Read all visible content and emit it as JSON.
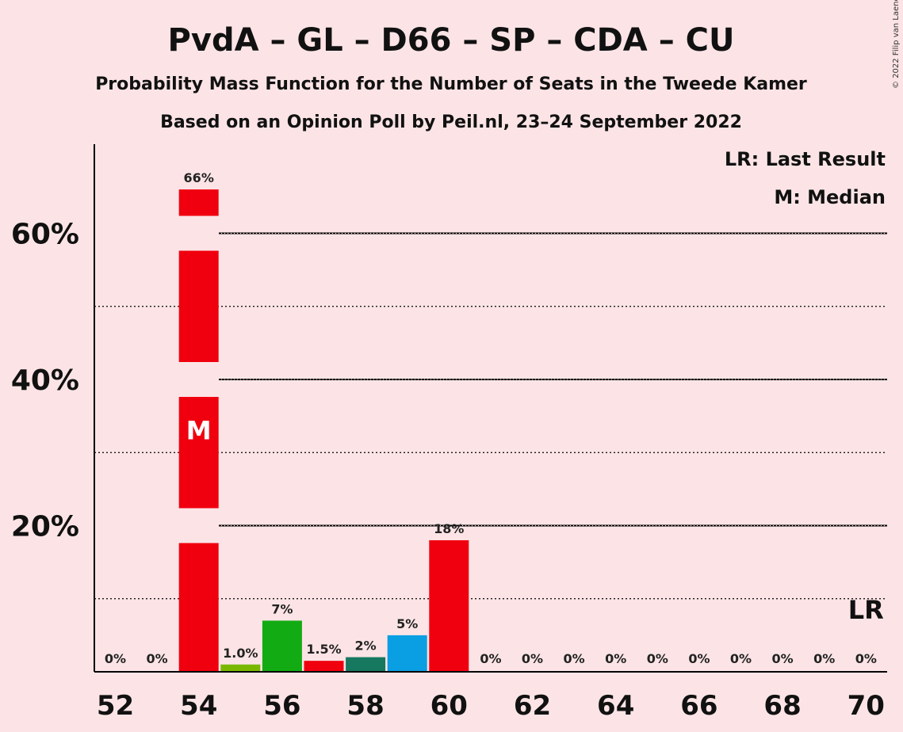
{
  "title": "PvdA – GL – D66 – SP – CDA – CU",
  "subtitle1": "Probability Mass Function for the Number of Seats in the Tweede Kamer",
  "subtitle2": "Based on an Opinion Poll by Peil.nl, 23–24 September 2022",
  "copyright": "© 2022 Filip van Laenen",
  "legend": {
    "lr": "LR: Last Result",
    "m": "M: Median"
  },
  "markers": {
    "median_label": "M",
    "median_seats": 54,
    "last_result_label": "LR",
    "last_result_seats": 70
  },
  "colors": {
    "background": "#fce4e6",
    "red": "#f0000f",
    "lightgreen": "#7ab800",
    "green": "#13ab13",
    "teal": "#16785e",
    "blue": "#0a9ee3"
  },
  "chart_data": {
    "type": "bar",
    "x": [
      52,
      53,
      54,
      55,
      56,
      57,
      58,
      59,
      60,
      61,
      62,
      63,
      64,
      65,
      66,
      67,
      68,
      69,
      70
    ],
    "values": [
      0,
      0,
      66,
      1.0,
      7,
      1.5,
      2,
      5,
      18,
      0,
      0,
      0,
      0,
      0,
      0,
      0,
      0,
      0,
      0
    ],
    "value_labels": [
      "0%",
      "0%",
      "66%",
      "1.0%",
      "7%",
      "1.5%",
      "2%",
      "5%",
      "18%",
      "0%",
      "0%",
      "0%",
      "0%",
      "0%",
      "0%",
      "0%",
      "0%",
      "0%",
      "0%"
    ],
    "bar_colors": [
      "#f0000f",
      "#f0000f",
      "#f0000f",
      "#7ab800",
      "#13ab13",
      "#f0000f",
      "#16785e",
      "#0a9ee3",
      "#f0000f",
      "#f0000f",
      "#f0000f",
      "#f0000f",
      "#f0000f",
      "#f0000f",
      "#f0000f",
      "#f0000f",
      "#f0000f",
      "#f0000f",
      "#f0000f"
    ],
    "x_ticks": [
      52,
      54,
      56,
      58,
      60,
      62,
      64,
      66,
      68,
      70
    ],
    "y_ticks": [
      {
        "value": 20,
        "label": "20%"
      },
      {
        "value": 40,
        "label": "40%"
      },
      {
        "value": 60,
        "label": "60%"
      }
    ],
    "y_minor_gridlines": [
      10,
      30,
      50
    ],
    "ylim": [
      0,
      72
    ],
    "xlabel": "",
    "ylabel": ""
  }
}
